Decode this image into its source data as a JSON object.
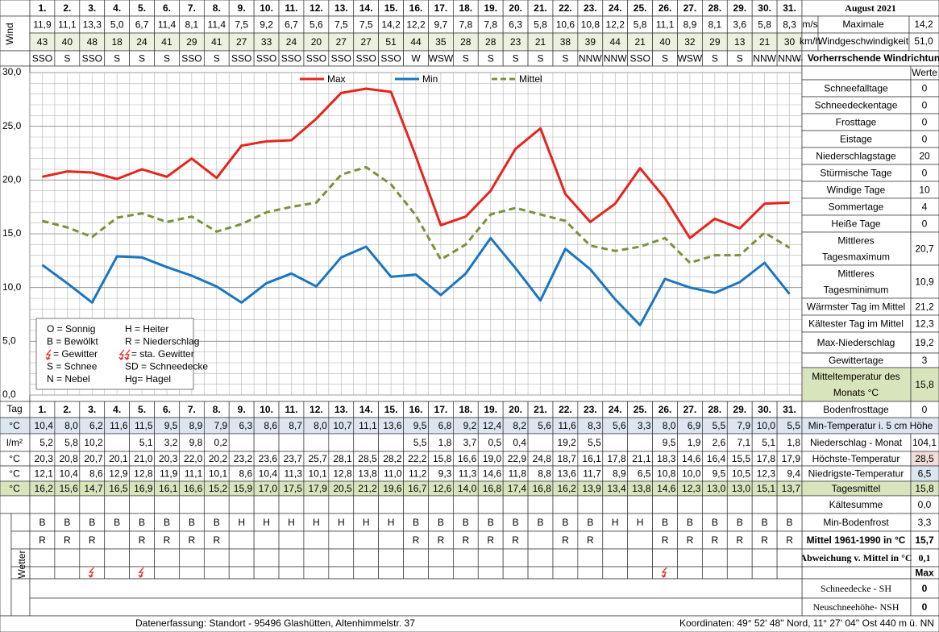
{
  "header": {
    "title": "August 2021",
    "wind_label": "Wind",
    "unit_ms": "m/s",
    "unit_kmh": "km/h",
    "max_wind_1": "Maximale",
    "max_wind_2": "Windgeschwindigkeit",
    "max_ms": "14,2",
    "max_kmh": "51,0",
    "direction_label": "← Vorherrschende Windrichtung"
  },
  "days": [
    "1.",
    "2.",
    "3.",
    "4.",
    "5.",
    "6.",
    "7.",
    "8.",
    "9.",
    "10.",
    "11.",
    "12.",
    "13.",
    "14.",
    "15.",
    "16.",
    "17.",
    "18.",
    "19.",
    "20.",
    "21.",
    "22.",
    "23.",
    "24.",
    "25.",
    "26.",
    "27.",
    "28.",
    "29.",
    "30.",
    "31."
  ],
  "wind_ms": [
    "11,9",
    "11,1",
    "13,3",
    "5,0",
    "6,7",
    "11,4",
    "8,1",
    "11,4",
    "7,5",
    "9,2",
    "6,7",
    "5,6",
    "7,5",
    "7,5",
    "14,2",
    "12,2",
    "9,7",
    "7,8",
    "7,8",
    "6,3",
    "5,8",
    "10,6",
    "10,8",
    "12,2",
    "5,8",
    "11,1",
    "8,9",
    "8,1",
    "3,6",
    "5,8",
    "8,3"
  ],
  "wind_kmh": [
    "43",
    "40",
    "48",
    "18",
    "24",
    "41",
    "29",
    "41",
    "27",
    "33",
    "24",
    "20",
    "27",
    "27",
    "51",
    "44",
    "35",
    "28",
    "28",
    "23",
    "21",
    "38",
    "39",
    "44",
    "21",
    "40",
    "32",
    "29",
    "13",
    "21",
    "30"
  ],
  "wind_dir": [
    "SSO",
    "S",
    "SSO",
    "S",
    "S",
    "S",
    "SSO",
    "S",
    "SSO",
    "SSO",
    "SSO",
    "SSO",
    "SSO",
    "SSO",
    "SSO",
    "W",
    "WSW",
    "S",
    "S",
    "S",
    "S",
    "S",
    "NNW",
    "NNW",
    "SSO",
    "S",
    "WSW",
    "S",
    "S",
    "NNW",
    "NNW"
  ],
  "chart_data": {
    "type": "line",
    "ylim": [
      0,
      30
    ],
    "yticks": [
      {
        "value": 0,
        "label": "0,0"
      },
      {
        "value": 5,
        "label": "5,0"
      },
      {
        "value": 10,
        "label": "10,0"
      },
      {
        "value": 15,
        "label": "15,0"
      },
      {
        "value": 20,
        "label": "20,0"
      },
      {
        "value": 25,
        "label": "25,0"
      },
      {
        "value": 30,
        "label": "30,0"
      }
    ],
    "grid": true,
    "series": [
      {
        "name": "Max",
        "color": "#e8231d",
        "dashed": false,
        "values": [
          20.3,
          20.8,
          20.7,
          20.1,
          21.0,
          20.3,
          22.0,
          20.2,
          23.2,
          23.6,
          23.7,
          25.7,
          28.1,
          28.5,
          28.2,
          22.2,
          15.8,
          16.6,
          19.0,
          22.9,
          24.8,
          18.7,
          16.1,
          17.8,
          21.1,
          18.3,
          14.6,
          16.4,
          15.5,
          17.8,
          17.9
        ]
      },
      {
        "name": "Min",
        "color": "#1a75c2",
        "dashed": false,
        "values": [
          12.1,
          10.4,
          8.6,
          12.9,
          12.8,
          11.9,
          11.1,
          10.1,
          8.6,
          10.4,
          11.3,
          10.1,
          12.8,
          13.8,
          11.0,
          11.2,
          9.3,
          11.3,
          14.6,
          11.8,
          8.8,
          13.6,
          11.7,
          8.9,
          6.5,
          10.8,
          10.0,
          9.5,
          10.5,
          12.3,
          9.4
        ]
      },
      {
        "name": "Mittel",
        "color": "#77933c",
        "dashed": true,
        "values": [
          16.2,
          15.6,
          14.7,
          16.5,
          16.9,
          16.1,
          16.6,
          15.2,
          15.9,
          17.0,
          17.5,
          17.9,
          20.5,
          21.2,
          19.6,
          16.7,
          12.6,
          14.0,
          16.8,
          17.4,
          16.8,
          16.2,
          13.9,
          13.4,
          13.8,
          14.6,
          12.3,
          13.0,
          13.0,
          15.1,
          13.7
        ]
      }
    ]
  },
  "legend_box": [
    "O = Sonnig",
    "H = Heiter",
    "B = Bewölkt",
    "R = Niederschlag",
    "= Gewitter",
    "= sta. Gewitter",
    "S = Schnee",
    "SD = Schneedecke",
    "N = Nebel",
    "Hg= Hagel"
  ],
  "stats": {
    "header": "Werte",
    "rows": [
      {
        "label": "Schneefalltage",
        "value": "0"
      },
      {
        "label": "Schneedeckentage",
        "value": "0"
      },
      {
        "label": "Frosttage",
        "value": "0"
      },
      {
        "label": "Eistage",
        "value": "0"
      },
      {
        "label": "Niederschlagstage",
        "value": "20"
      },
      {
        "label": "Stürmische Tage",
        "value": "0"
      },
      {
        "label": "Windige Tage",
        "value": "10"
      },
      {
        "label": "Sommertage",
        "value": "4"
      },
      {
        "label": "Heiße Tage",
        "value": "0"
      },
      {
        "label": "Mittleres",
        "label2": "Tagesmaximum",
        "value": "20,7"
      },
      {
        "label": "Mittleres",
        "label2": "Tagesminimum",
        "value": "10,9"
      },
      {
        "label": "Wärmster Tag im Mittel",
        "value": "21,2"
      },
      {
        "label": "Kältester Tag im Mittel",
        "value": "12,3"
      },
      {
        "label": "Max-Niederschlag",
        "value": "19,2"
      },
      {
        "label": "Gewittertage",
        "value": "3"
      },
      {
        "label": "Mitteltemperatur des",
        "label2": "Monats °C",
        "value": "15,8"
      }
    ]
  },
  "table": {
    "day_label": "Tag",
    "rows": [
      {
        "unit": "°C",
        "label": "Min-Temperatur i. 5 cm Höhe",
        "values": [
          "10,4",
          "8,0",
          "6,2",
          "11,6",
          "11,5",
          "9,5",
          "8,9",
          "7,9",
          "6,3",
          "8,6",
          "8,7",
          "8,0",
          "10,7",
          "11,1",
          "13,6",
          "9,5",
          "6,8",
          "9,2",
          "12,4",
          "8,2",
          "5,6",
          "11,6",
          "8,3",
          "5,6",
          "3,3",
          "8,0",
          "6,9",
          "5,5",
          "7,9",
          "10,0",
          "5,5"
        ]
      },
      {
        "unit": "l/m²",
        "label": "Niederschlag - Monat",
        "total": "104,1",
        "values": [
          "5,2",
          "5,8",
          "10,2",
          null,
          "5,1",
          "3,2",
          "9,8",
          "0,2",
          null,
          null,
          null,
          null,
          null,
          null,
          null,
          "5,5",
          "1,8",
          "3,7",
          "0,5",
          "0,4",
          null,
          "19,2",
          "5,5",
          null,
          null,
          "9,5",
          "1,9",
          "2,6",
          "7,1",
          "5,1",
          "1,8"
        ]
      },
      {
        "unit": "°C",
        "label": "Höchste-Temperatur",
        "total": "28,5",
        "values": [
          "20,3",
          "20,8",
          "20,7",
          "20,1",
          "21,0",
          "20,3",
          "22,0",
          "20,2",
          "23,2",
          "23,6",
          "23,7",
          "25,7",
          "28,1",
          "28,5",
          "28,2",
          "22,2",
          "15,8",
          "16,6",
          "19,0",
          "22,9",
          "24,8",
          "18,7",
          "16,1",
          "17,8",
          "21,1",
          "18,3",
          "14,6",
          "16,4",
          "15,5",
          "17,8",
          "17,9"
        ]
      },
      {
        "unit": "°C",
        "label": "Niedrigste-Temperatur",
        "total": "6,5",
        "values": [
          "12,1",
          "10,4",
          "8,6",
          "12,9",
          "12,8",
          "11,9",
          "11,1",
          "10,1",
          "8,6",
          "10,4",
          "11,3",
          "10,1",
          "12,8",
          "13,8",
          "11,0",
          "11,2",
          "9,3",
          "11,3",
          "14,6",
          "11,8",
          "8,8",
          "13,6",
          "11,7",
          "8,9",
          "6,5",
          "10,8",
          "10,0",
          "9,5",
          "10,5",
          "12,3",
          "9,4"
        ]
      },
      {
        "unit": "°C",
        "label": "Tagesmittel",
        "total": "15,8",
        "values": [
          "16,2",
          "15,6",
          "14,7",
          "16,5",
          "16,9",
          "16,1",
          "16,6",
          "15,2",
          "15,9",
          "17,0",
          "17,5",
          "17,9",
          "20,5",
          "21,2",
          "19,6",
          "16,7",
          "12,6",
          "14,0",
          "16,8",
          "17,4",
          "16,8",
          "16,2",
          "13,9",
          "13,4",
          "13,8",
          "14,6",
          "12,3",
          "13,0",
          "13,0",
          "15,1",
          "13,7"
        ]
      }
    ]
  },
  "side": [
    {
      "label": "Bodenfrosttage",
      "value": "0"
    },
    {
      "label": "Kältesumme",
      "value": "0,0"
    },
    {
      "label": "Min-Bodenfrost",
      "value": "3,3"
    },
    {
      "label": "Mittel 1961-1990 in °C",
      "value": "15,7"
    },
    {
      "label": "Abweichung v. Mittel in °C",
      "value": "0,1"
    },
    {
      "value": "Max"
    },
    {
      "label": "Schneedecke -  SH",
      "value": "0"
    },
    {
      "label": "Neuschneehöhe- NSH",
      "value": "0"
    }
  ],
  "weather": {
    "label": "Wetter",
    "rows": [
      [
        "B",
        "B",
        "B",
        "B",
        "B",
        "B",
        "B",
        "B",
        "H",
        "H",
        "H",
        "H",
        "H",
        "H",
        "H",
        "B",
        "B",
        "B",
        "B",
        "B",
        "B",
        "B",
        "B",
        "H",
        "H",
        "B",
        "B",
        "B",
        "B",
        "B",
        "B"
      ],
      [
        "R",
        "R",
        "R",
        null,
        "R",
        "R",
        "R",
        "R",
        null,
        null,
        null,
        null,
        null,
        null,
        null,
        "R",
        "R",
        "R",
        "R",
        "R",
        null,
        "R",
        "R",
        null,
        null,
        "R",
        "R",
        "R",
        "R",
        "R",
        "R"
      ]
    ]
  },
  "footer": {
    "left": "Datenerfassung:  Standort -  95496  Glashütten, Altenhimmelstr. 37",
    "right": "Koordinaten:  49° 52' 48'' Nord,  11° 27' 04'' Ost   440 m ü. NN"
  }
}
